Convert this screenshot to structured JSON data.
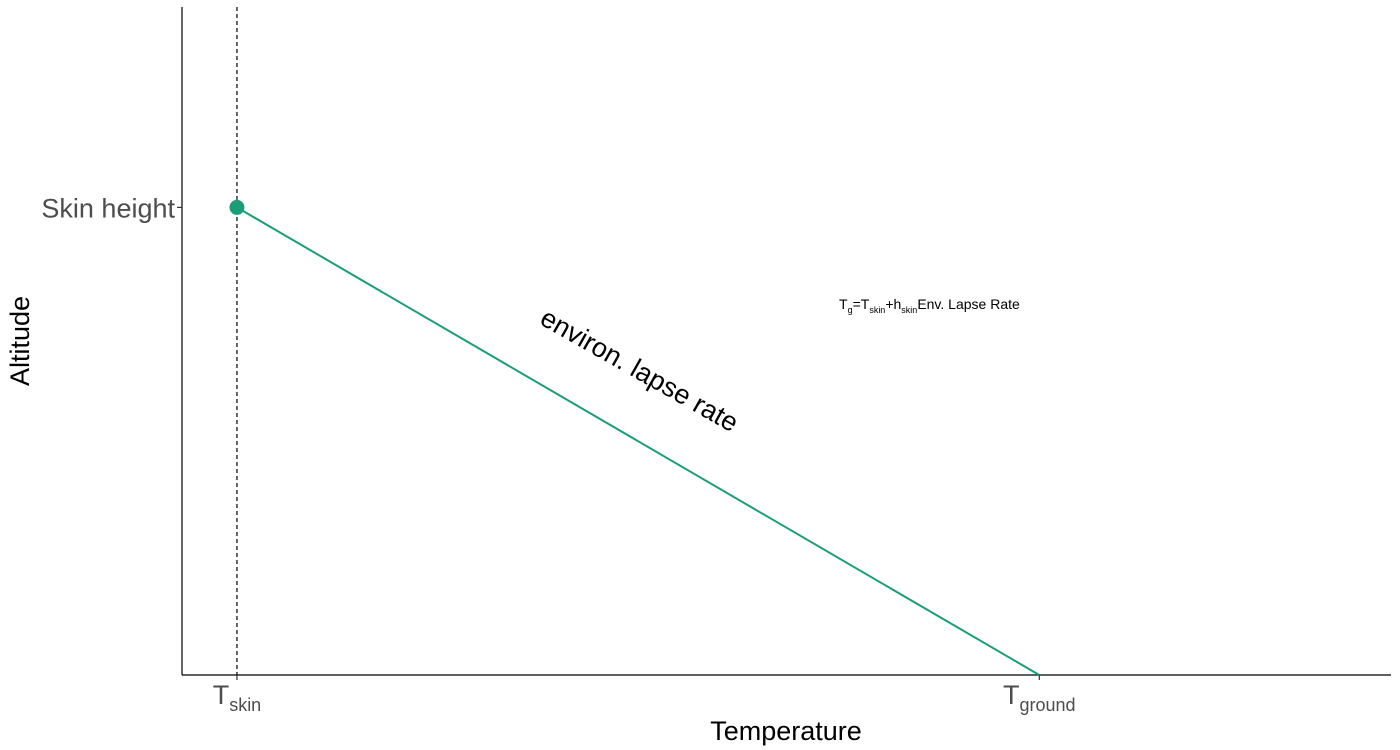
{
  "chart_data": {
    "type": "line",
    "title": "",
    "xlabel": "Temperature",
    "ylabel": "Altitude",
    "xlim": [
      0,
      22
    ],
    "ylim": [
      0,
      10
    ],
    "grid": false,
    "x_ticks": [
      {
        "value": 1,
        "base": "T",
        "sub": "skin"
      },
      {
        "value": 15.6,
        "base": "T",
        "sub": "ground"
      }
    ],
    "y_ticks": [
      {
        "value": 7,
        "label": "Skin height"
      }
    ],
    "series": [
      {
        "color": "#1b9e77",
        "points": [
          {
            "x": 1,
            "y": 7
          },
          {
            "x": 15.6,
            "y": 0
          }
        ]
      }
    ],
    "marker": {
      "x": 1,
      "y": 7,
      "color": "#1b9e77"
    },
    "vline": {
      "x": 1,
      "style": "dashed",
      "color": "#000000"
    },
    "annotations": {
      "line_label": "environ. lapse rate",
      "formula": {
        "parts": [
          {
            "text": "T",
            "sub": false
          },
          {
            "text": "g",
            "sub": true
          },
          {
            "text": "=T",
            "sub": false
          },
          {
            "text": "skin",
            "sub": true
          },
          {
            "text": "+h",
            "sub": false
          },
          {
            "text": "skin",
            "sub": true
          },
          {
            "text": "Env. Lapse Rate",
            "sub": false
          }
        ]
      }
    }
  }
}
